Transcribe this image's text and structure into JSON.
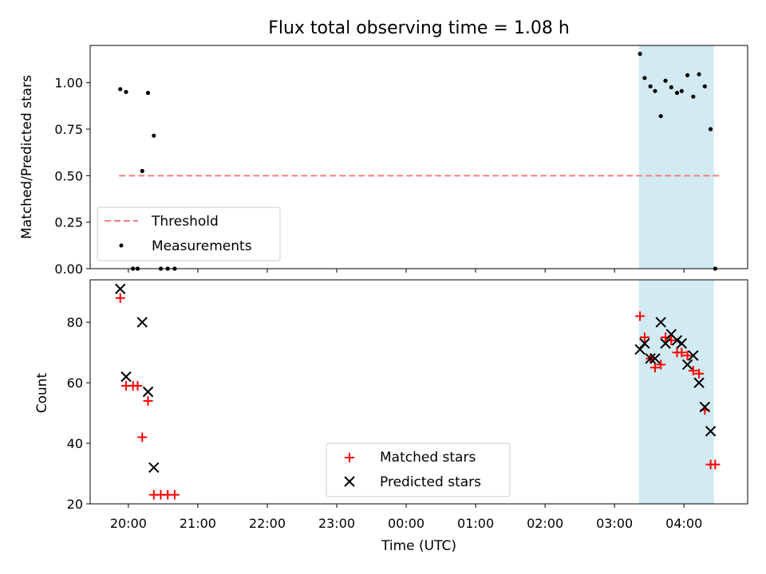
{
  "chart_data": [
    {
      "type": "scatter",
      "title": "Flux total observing time = 1.08 h",
      "xlabel": "",
      "ylabel": "Matched/Predicted stars",
      "xlim": [
        "19:27",
        "04:55"
      ],
      "ylim": [
        0,
        1.2
      ],
      "y_ticks": [
        "0.00",
        "0.25",
        "0.50",
        "0.75",
        "1.00"
      ],
      "x_ticks": [
        "20:00",
        "21:00",
        "22:00",
        "23:00",
        "00:00",
        "01:00",
        "02:00",
        "03:00",
        "04:00"
      ],
      "highlight_span": {
        "x0": "03:21",
        "x1": "04:26",
        "color": "#add8e6"
      },
      "threshold": {
        "name": "Threshold",
        "value": 0.5,
        "x0": "19:52",
        "x1": "04:32",
        "color": "#f08080"
      },
      "series": [
        {
          "name": "Measurements",
          "color": "#000000",
          "points": [
            [
              "19:53",
              0.965
            ],
            [
              "19:58",
              0.95
            ],
            [
              "20:04",
              0.0
            ],
            [
              "20:08",
              0.0
            ],
            [
              "20:12",
              0.525
            ],
            [
              "20:17",
              0.945
            ],
            [
              "20:22",
              0.715
            ],
            [
              "20:28",
              0.0
            ],
            [
              "20:34",
              0.0
            ],
            [
              "20:40",
              0.0
            ],
            [
              "03:22",
              1.155
            ],
            [
              "03:26",
              1.025
            ],
            [
              "03:31",
              0.98
            ],
            [
              "03:35",
              0.955
            ],
            [
              "03:40",
              0.82
            ],
            [
              "03:44",
              1.01
            ],
            [
              "03:49",
              0.975
            ],
            [
              "03:54",
              0.945
            ],
            [
              "03:58",
              0.955
            ],
            [
              "04:03",
              1.04
            ],
            [
              "04:08",
              0.925
            ],
            [
              "04:13",
              1.045
            ],
            [
              "04:18",
              0.98
            ],
            [
              "04:23",
              0.75
            ],
            [
              "04:27",
              0.0
            ]
          ]
        }
      ],
      "legend": {
        "position": "lower-left",
        "entries": [
          "Threshold",
          "Measurements"
        ]
      }
    },
    {
      "type": "scatter",
      "title": "",
      "xlabel": "Time (UTC)",
      "ylabel": "Count",
      "xlim": [
        "19:27",
        "04:55"
      ],
      "ylim": [
        20,
        94
      ],
      "y_ticks": [
        "20",
        "40",
        "60",
        "80"
      ],
      "x_ticks": [
        "20:00",
        "21:00",
        "22:00",
        "23:00",
        "00:00",
        "01:00",
        "02:00",
        "03:00",
        "04:00"
      ],
      "highlight_span": {
        "x0": "03:21",
        "x1": "04:26",
        "color": "#add8e6"
      },
      "series": [
        {
          "name": "Matched stars",
          "marker": "plus",
          "color": "#ff0000",
          "points": [
            [
              "19:53",
              88
            ],
            [
              "19:58",
              59
            ],
            [
              "20:04",
              59
            ],
            [
              "20:08",
              59
            ],
            [
              "20:12",
              42
            ],
            [
              "20:17",
              54
            ],
            [
              "20:22",
              23
            ],
            [
              "20:28",
              23
            ],
            [
              "20:34",
              23
            ],
            [
              "20:40",
              23
            ],
            [
              "03:22",
              82
            ],
            [
              "03:26",
              75
            ],
            [
              "03:31",
              68
            ],
            [
              "03:35",
              65
            ],
            [
              "03:40",
              66
            ],
            [
              "03:44",
              75
            ],
            [
              "03:49",
              74
            ],
            [
              "03:54",
              70
            ],
            [
              "03:58",
              70
            ],
            [
              "04:03",
              69
            ],
            [
              "04:08",
              64
            ],
            [
              "04:13",
              63
            ],
            [
              "04:18",
              51
            ],
            [
              "04:23",
              33
            ],
            [
              "04:27",
              33
            ]
          ]
        },
        {
          "name": "Predicted stars",
          "marker": "x",
          "color": "#000000",
          "points": [
            [
              "19:53",
              91
            ],
            [
              "19:58",
              62
            ],
            [
              "20:12",
              80
            ],
            [
              "20:17",
              57
            ],
            [
              "20:22",
              32
            ],
            [
              "03:22",
              71
            ],
            [
              "03:26",
              73
            ],
            [
              "03:31",
              68
            ],
            [
              "03:35",
              68
            ],
            [
              "03:40",
              80
            ],
            [
              "03:44",
              73
            ],
            [
              "03:49",
              76
            ],
            [
              "03:54",
              74
            ],
            [
              "03:58",
              73
            ],
            [
              "04:03",
              66
            ],
            [
              "04:08",
              69
            ],
            [
              "04:13",
              60
            ],
            [
              "04:18",
              52
            ],
            [
              "04:23",
              44
            ]
          ]
        }
      ],
      "legend": {
        "position": "lower-center",
        "entries": [
          "Matched stars",
          "Predicted stars"
        ]
      }
    }
  ]
}
